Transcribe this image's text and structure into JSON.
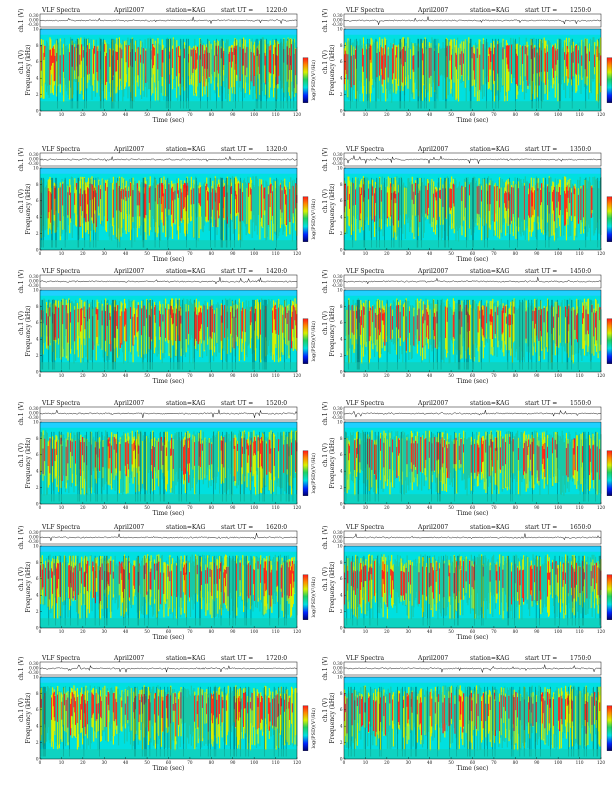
{
  "figure": {
    "header": {
      "title": "VLF Spectra",
      "date": "April2007",
      "station_label": "station=KAG",
      "start_label": "start UT ="
    },
    "axes": {
      "xlabel": "Time (sec)",
      "ylabel_freq": "Frequency (kHz)",
      "ylabel_ch": "ch.1 (V)",
      "colorbar_label": "log(PSD)(V²/Hz)"
    },
    "colors": {
      "background": "#00e0e0",
      "low": "#19c8a8",
      "mid": "#d8f000",
      "high": "#ff1a1a",
      "top_band": "#20d0ff",
      "waveform": "#111111"
    }
  },
  "chart_data": [
    {
      "type": "heatmap",
      "title": "VLF Spectra",
      "date": "April2007",
      "station": "KAG",
      "start_ut": "1220:0",
      "xlabel": "Time (sec)",
      "ylabel": "Frequency (kHz)",
      "xlim": [
        0,
        120
      ],
      "ylim": [
        0,
        10
      ],
      "x_ticks": [
        0,
        10,
        20,
        30,
        40,
        50,
        60,
        70,
        80,
        90,
        100,
        110,
        120
      ],
      "y_ticks": [
        0,
        2,
        4,
        6,
        8,
        10
      ],
      "waveform": {
        "ylabel": "ch.1 (V)",
        "y_ticks": [
          "0.30",
          "0.00",
          "-0.30"
        ]
      }
    },
    {
      "type": "heatmap",
      "title": "VLF Spectra",
      "date": "April2007",
      "station": "KAG",
      "start_ut": "1250:0",
      "xlabel": "Time (sec)",
      "ylabel": "Frequency (kHz)",
      "xlim": [
        0,
        120
      ],
      "ylim": [
        0,
        10
      ],
      "x_ticks": [
        0,
        10,
        20,
        30,
        40,
        50,
        60,
        70,
        80,
        90,
        100,
        110,
        120
      ],
      "y_ticks": [
        0,
        2,
        4,
        6,
        8,
        10
      ],
      "waveform": {
        "ylabel": "ch.1 (V)",
        "y_ticks": [
          "0.30",
          "0.00",
          "-0.30"
        ]
      }
    },
    {
      "type": "heatmap",
      "title": "VLF Spectra",
      "date": "April2007",
      "station": "KAG",
      "start_ut": "1320:0",
      "xlabel": "Time (sec)",
      "ylabel": "Frequency (kHz)",
      "xlim": [
        0,
        120
      ],
      "ylim": [
        0,
        10
      ],
      "x_ticks": [
        0,
        10,
        20,
        30,
        40,
        50,
        60,
        70,
        80,
        90,
        100,
        110,
        120
      ],
      "y_ticks": [
        0,
        2,
        4,
        6,
        8,
        10
      ],
      "waveform": {
        "ylabel": "ch.1 (V)",
        "y_ticks": [
          "0.30",
          "0.00",
          "-0.30"
        ]
      }
    },
    {
      "type": "heatmap",
      "title": "VLF Spectra",
      "date": "April2007",
      "station": "KAG",
      "start_ut": "1350:0",
      "xlabel": "Time (sec)",
      "ylabel": "Frequency (kHz)",
      "xlim": [
        0,
        120
      ],
      "ylim": [
        0,
        10
      ],
      "x_ticks": [
        0,
        10,
        20,
        30,
        40,
        50,
        60,
        70,
        80,
        90,
        100,
        110,
        120
      ],
      "y_ticks": [
        0,
        2,
        4,
        6,
        8,
        10
      ],
      "waveform": {
        "ylabel": "ch.1 (V)",
        "y_ticks": [
          "0.30",
          "0.00",
          "-0.30"
        ]
      }
    },
    {
      "type": "heatmap",
      "title": "VLF Spectra",
      "date": "April2007",
      "station": "KAG",
      "start_ut": "1420:0",
      "xlabel": "Time (sec)",
      "ylabel": "Frequency (kHz)",
      "xlim": [
        0,
        120
      ],
      "ylim": [
        0,
        10
      ],
      "x_ticks": [
        0,
        10,
        20,
        30,
        40,
        50,
        60,
        70,
        80,
        90,
        100,
        110,
        120
      ],
      "y_ticks": [
        0,
        2,
        4,
        6,
        8,
        10
      ],
      "waveform": {
        "ylabel": "ch.1 (V)",
        "y_ticks": [
          "0.30",
          "0.00",
          "-0.30"
        ]
      }
    },
    {
      "type": "heatmap",
      "title": "VLF Spectra",
      "date": "April2007",
      "station": "KAG",
      "start_ut": "1450:0",
      "xlabel": "Time (sec)",
      "ylabel": "Frequency (kHz)",
      "xlim": [
        0,
        120
      ],
      "ylim": [
        0,
        10
      ],
      "x_ticks": [
        0,
        10,
        20,
        30,
        40,
        50,
        60,
        70,
        80,
        90,
        100,
        110,
        120
      ],
      "y_ticks": [
        0,
        2,
        4,
        6,
        8,
        10
      ],
      "waveform": {
        "ylabel": "ch.1 (V)",
        "y_ticks": [
          "0.30",
          "0.00",
          "-0.30"
        ]
      }
    },
    {
      "type": "heatmap",
      "title": "VLF Spectra",
      "date": "April2007",
      "station": "KAG",
      "start_ut": "1520:0",
      "xlabel": "Time (sec)",
      "ylabel": "Frequency (kHz)",
      "xlim": [
        0,
        120
      ],
      "ylim": [
        0,
        10
      ],
      "x_ticks": [
        0,
        10,
        20,
        30,
        40,
        50,
        60,
        70,
        80,
        90,
        100,
        110,
        120
      ],
      "y_ticks": [
        0,
        2,
        4,
        6,
        8,
        10
      ],
      "waveform": {
        "ylabel": "ch.1 (V)",
        "y_ticks": [
          "0.30",
          "0.00",
          "-0.30"
        ]
      }
    },
    {
      "type": "heatmap",
      "title": "VLF Spectra",
      "date": "April2007",
      "station": "KAG",
      "start_ut": "1550:0",
      "xlabel": "Time (sec)",
      "ylabel": "Frequency (kHz)",
      "xlim": [
        0,
        120
      ],
      "ylim": [
        0,
        10
      ],
      "x_ticks": [
        0,
        10,
        20,
        30,
        40,
        50,
        60,
        70,
        80,
        90,
        100,
        110,
        120
      ],
      "y_ticks": [
        0,
        2,
        4,
        6,
        8,
        10
      ],
      "waveform": {
        "ylabel": "ch.1 (V)",
        "y_ticks": [
          "0.30",
          "0.00",
          "-0.30"
        ]
      }
    },
    {
      "type": "heatmap",
      "title": "VLF Spectra",
      "date": "April2007",
      "station": "KAG",
      "start_ut": "1620:0",
      "xlabel": "Time (sec)",
      "ylabel": "Frequency (kHz)",
      "xlim": [
        0,
        120
      ],
      "ylim": [
        0,
        10
      ],
      "x_ticks": [
        0,
        10,
        20,
        30,
        40,
        50,
        60,
        70,
        80,
        90,
        100,
        110,
        120
      ],
      "y_ticks": [
        0,
        2,
        4,
        6,
        8,
        10
      ],
      "waveform": {
        "ylabel": "ch.1 (V)",
        "y_ticks": [
          "0.30",
          "0.00",
          "-0.30"
        ]
      }
    },
    {
      "type": "heatmap",
      "title": "VLF Spectra",
      "date": "April2007",
      "station": "KAG",
      "start_ut": "1650:0",
      "xlabel": "Time (sec)",
      "ylabel": "Frequency (kHz)",
      "xlim": [
        0,
        120
      ],
      "ylim": [
        0,
        10
      ],
      "x_ticks": [
        0,
        10,
        20,
        30,
        40,
        50,
        60,
        70,
        80,
        90,
        100,
        110,
        120
      ],
      "y_ticks": [
        0,
        2,
        4,
        6,
        8,
        10
      ],
      "waveform": {
        "ylabel": "ch.1 (V)",
        "y_ticks": [
          "0.30",
          "0.00",
          "-0.30"
        ]
      }
    },
    {
      "type": "heatmap",
      "title": "VLF Spectra",
      "date": "April2007",
      "station": "KAG",
      "start_ut": "1720:0",
      "xlabel": "Time (sec)",
      "ylabel": "Frequency (kHz)",
      "xlim": [
        0,
        120
      ],
      "ylim": [
        0,
        10
      ],
      "x_ticks": [
        0,
        10,
        20,
        30,
        40,
        50,
        60,
        70,
        80,
        90,
        100,
        110,
        120
      ],
      "y_ticks": [
        0,
        2,
        4,
        6,
        8,
        10
      ],
      "waveform": {
        "ylabel": "ch.1 (V)",
        "y_ticks": [
          "0.30",
          "0.00",
          "-0.30"
        ]
      }
    },
    {
      "type": "heatmap",
      "title": "VLF Spectra",
      "date": "April2007",
      "station": "KAG",
      "start_ut": "1750:0",
      "xlabel": "Time (sec)",
      "ylabel": "Frequency (kHz)",
      "xlim": [
        0,
        120
      ],
      "ylim": [
        0,
        10
      ],
      "x_ticks": [
        0,
        10,
        20,
        30,
        40,
        50,
        60,
        70,
        80,
        90,
        100,
        110,
        120
      ],
      "y_ticks": [
        0,
        2,
        4,
        6,
        8,
        10
      ],
      "waveform": {
        "ylabel": "ch.1 (V)",
        "y_ticks": [
          "0.30",
          "0.00",
          "-0.30"
        ]
      }
    }
  ]
}
